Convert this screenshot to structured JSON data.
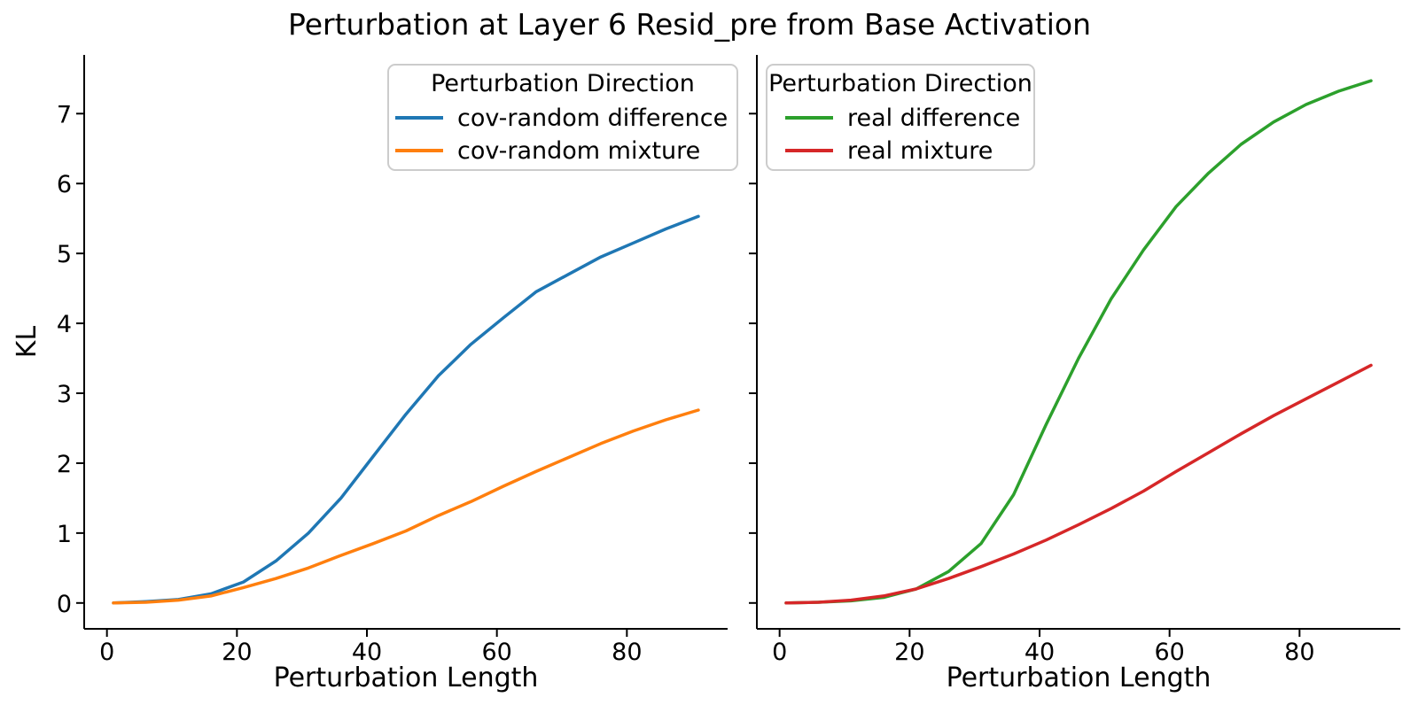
{
  "figure": {
    "title": "Perturbation at Layer 6 Resid_pre from Base Activation",
    "background": "#ffffff",
    "text_color": "#000000",
    "legend_border_color": "#cccccc"
  },
  "chart_data": [
    {
      "type": "line",
      "panel": "left",
      "xlabel": "Perturbation Length",
      "ylabel": "KL",
      "xlim": [
        -3.5,
        95.5
      ],
      "ylim": [
        -0.37,
        7.84
      ],
      "xticks": [
        0,
        20,
        40,
        60,
        80
      ],
      "yticks": [
        0,
        1,
        2,
        3,
        4,
        5,
        6,
        7
      ],
      "show_ytick_labels": true,
      "grid": false,
      "legend": {
        "title": "Perturbation Direction",
        "position": "upper left inside"
      },
      "x": [
        1,
        6,
        11,
        16,
        21,
        26,
        31,
        36,
        41,
        46,
        51,
        56,
        61,
        66,
        71,
        76,
        81,
        86,
        91
      ],
      "series": [
        {
          "name": "cov-random difference",
          "color": "#1f77b4",
          "values": [
            0.0,
            0.02,
            0.05,
            0.13,
            0.3,
            0.6,
            1.0,
            1.5,
            2.1,
            2.7,
            3.25,
            3.7,
            4.08,
            4.45,
            4.7,
            4.95,
            5.15,
            5.35,
            5.53
          ]
        },
        {
          "name": "cov-random mixture",
          "color": "#ff7f0e",
          "values": [
            0.0,
            0.01,
            0.04,
            0.1,
            0.22,
            0.35,
            0.5,
            0.68,
            0.85,
            1.03,
            1.25,
            1.45,
            1.67,
            1.88,
            2.08,
            2.28,
            2.46,
            2.62,
            2.76
          ]
        }
      ]
    },
    {
      "type": "line",
      "panel": "right",
      "xlabel": "Perturbation Length",
      "ylabel": "",
      "xlim": [
        -3.5,
        95.5
      ],
      "ylim": [
        -0.37,
        7.84
      ],
      "xticks": [
        0,
        20,
        40,
        60,
        80
      ],
      "yticks": [
        0,
        1,
        2,
        3,
        4,
        5,
        6,
        7
      ],
      "show_ytick_labels": false,
      "grid": false,
      "legend": {
        "title": "Perturbation Direction",
        "position": "upper left inside"
      },
      "x": [
        1,
        6,
        11,
        16,
        21,
        26,
        31,
        36,
        41,
        46,
        51,
        56,
        61,
        66,
        71,
        76,
        81,
        86,
        91
      ],
      "series": [
        {
          "name": "real difference",
          "color": "#2ca02c",
          "values": [
            0.0,
            0.01,
            0.03,
            0.08,
            0.2,
            0.45,
            0.85,
            1.55,
            2.55,
            3.5,
            4.35,
            5.05,
            5.67,
            6.15,
            6.56,
            6.88,
            7.13,
            7.32,
            7.47
          ]
        },
        {
          "name": "real mixture",
          "color": "#d62728",
          "values": [
            0.0,
            0.01,
            0.04,
            0.1,
            0.2,
            0.35,
            0.52,
            0.7,
            0.9,
            1.12,
            1.35,
            1.6,
            1.88,
            2.15,
            2.42,
            2.68,
            2.92,
            3.16,
            3.4
          ]
        }
      ]
    }
  ]
}
